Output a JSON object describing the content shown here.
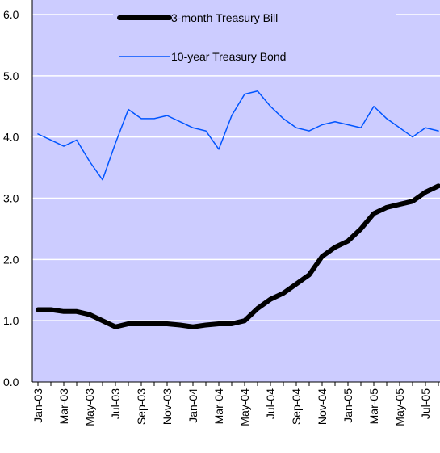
{
  "chart_data": {
    "type": "line",
    "categories": [
      "Jan-03",
      null,
      "Mar-03",
      null,
      "May-03",
      null,
      "Jul-03",
      null,
      "Sep-03",
      null,
      "Nov-03",
      null,
      "Jan-04",
      null,
      "Mar-04",
      null,
      "May-04",
      null,
      "Jul-04",
      null,
      "Sep-04",
      null,
      "Nov-04",
      null,
      "Jan-05",
      null,
      "Mar-05",
      null,
      "May-05",
      null,
      "Jul-05",
      null
    ],
    "series": [
      {
        "name": "3-month Treasury Bill",
        "color": "#000000",
        "width": 6,
        "values": [
          1.18,
          1.18,
          1.15,
          1.15,
          1.1,
          1.0,
          0.9,
          0.95,
          0.95,
          0.95,
          0.95,
          0.93,
          0.9,
          0.93,
          0.95,
          0.95,
          1.0,
          1.2,
          1.35,
          1.45,
          1.6,
          1.75,
          2.05,
          2.2,
          2.3,
          2.5,
          2.75,
          2.85,
          2.9,
          2.95,
          3.1,
          3.2
        ]
      },
      {
        "name": "10-year Treasury Bond",
        "color": "#0055ff",
        "width": 1.5,
        "values": [
          4.05,
          3.95,
          3.85,
          3.95,
          3.6,
          3.3,
          3.9,
          4.45,
          4.3,
          4.3,
          4.35,
          4.25,
          4.15,
          4.1,
          3.8,
          4.35,
          4.7,
          4.75,
          4.5,
          4.3,
          4.15,
          4.1,
          4.2,
          4.25,
          4.2,
          4.15,
          4.5,
          4.3,
          4.15,
          4.0,
          4.15,
          4.1
        ]
      }
    ],
    "ylim": [
      0,
      6
    ],
    "yticks": [
      {
        "value": 0,
        "label": "0.0"
      },
      {
        "value": 1,
        "label": "1.0"
      },
      {
        "value": 2,
        "label": "2.0"
      },
      {
        "value": 3,
        "label": "3.0"
      },
      {
        "value": 4,
        "label": "4.0"
      },
      {
        "value": 5,
        "label": "5.0"
      },
      {
        "value": 6,
        "label": "6.0"
      }
    ],
    "grid": true,
    "legend": "top",
    "background": "#ccccff"
  }
}
